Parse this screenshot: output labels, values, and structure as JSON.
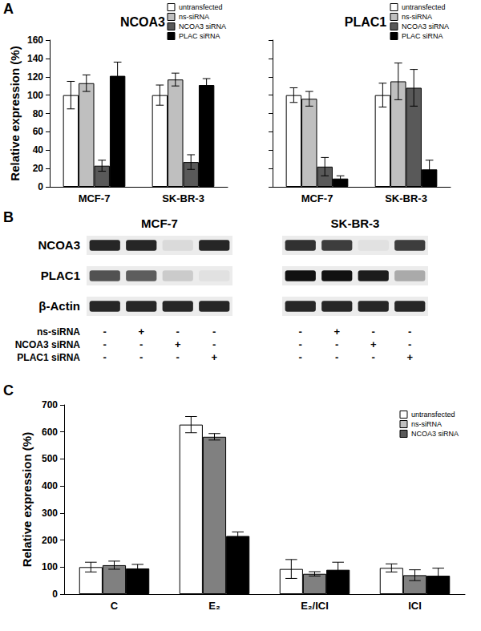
{
  "panel_labels": [
    "A",
    "B",
    "C"
  ],
  "chart_data": [
    {
      "type": "bar",
      "title": "NCOA3",
      "y_label": "Relative expression (%)",
      "categories": [
        "MCF-7",
        "SK-BR-3"
      ],
      "series": [
        {
          "name": "untransfected",
          "color": "#ffffff",
          "values": [
            100,
            100
          ],
          "errors": [
            15,
            11
          ]
        },
        {
          "name": "ns-siRNA",
          "color": "#bfbfbf",
          "values": [
            113,
            117
          ],
          "errors": [
            9,
            7
          ]
        },
        {
          "name": "NCOA3 siRNA",
          "color": "#595959",
          "values": [
            23,
            27
          ],
          "errors": [
            6,
            8
          ]
        },
        {
          "name": "PLAC siRNA",
          "color": "#000000",
          "values": [
            121,
            111
          ],
          "errors": [
            15,
            7
          ]
        }
      ],
      "ylim": [
        0,
        160
      ],
      "yticks": [
        0,
        20,
        40,
        60,
        80,
        100,
        120,
        140,
        160
      ],
      "grid": false,
      "legend": "top-right"
    },
    {
      "type": "bar",
      "title": "PLAC1",
      "categories": [
        "MCF-7",
        "SK-BR-3"
      ],
      "series": [
        {
          "name": "untransfected",
          "color": "#ffffff",
          "values": [
            100,
            100
          ],
          "errors": [
            8,
            13
          ]
        },
        {
          "name": "ns-siRNA",
          "color": "#bfbfbf",
          "values": [
            96,
            115
          ],
          "errors": [
            8,
            20
          ]
        },
        {
          "name": "NCOA3 siRNA",
          "color": "#595959",
          "values": [
            22,
            108
          ],
          "errors": [
            10,
            20
          ]
        },
        {
          "name": "PLAC siRNA",
          "color": "#000000",
          "values": [
            9,
            19
          ],
          "errors": [
            3,
            10
          ]
        }
      ],
      "ylim": [
        0,
        160
      ],
      "yticks": [
        0,
        20,
        40,
        60,
        80,
        100,
        120,
        140,
        160
      ],
      "grid": false,
      "legend": "top-right",
      "tick_labels": "x"
    },
    {
      "type": "bar",
      "y_label": "Relative expression (%)",
      "categories": [
        "C",
        "E₂",
        "E₂/ICI",
        "ICI"
      ],
      "series": [
        {
          "name": "untransfected",
          "color": "#ffffff",
          "values": [
            100,
            627,
            93,
            97
          ],
          "errors": [
            18,
            30,
            35,
            15
          ]
        },
        {
          "name": "ns-siRNA",
          "color": "#808080",
          "values": [
            107,
            582,
            75,
            70
          ],
          "errors": [
            15,
            12,
            8,
            20
          ]
        },
        {
          "name": "NCOA3 siRNA",
          "color": "#000000",
          "values": [
            95,
            215,
            90,
            68
          ],
          "errors": [
            15,
            15,
            28,
            28
          ]
        }
      ],
      "ylim": [
        0,
        700
      ],
      "yticks": [
        0,
        100,
        200,
        300,
        400,
        500,
        600,
        700
      ],
      "grid": false,
      "legend": "top-right"
    }
  ],
  "blot": {
    "rows": [
      "NCOA3",
      "PLAC1",
      "β-Actin"
    ],
    "cell_lines": [
      {
        "name": "MCF-7",
        "intensity": [
          [
            0.9,
            0.9,
            0.08,
            0.9
          ],
          [
            0.7,
            0.65,
            0.15,
            0.05
          ],
          [
            0.9,
            0.9,
            0.9,
            0.9
          ]
        ]
      },
      {
        "name": "SK-BR-3",
        "intensity": [
          [
            0.85,
            0.8,
            0.05,
            0.8
          ],
          [
            1,
            1,
            0.95,
            0.3
          ],
          [
            0.9,
            0.9,
            0.9,
            0.9
          ]
        ]
      }
    ],
    "treatments": [
      {
        "label": "ns-siRNA",
        "signs": [
          "-",
          "+",
          "-",
          "-"
        ]
      },
      {
        "label": "NCOA3 siRNA",
        "signs": [
          "-",
          "-",
          "+",
          "-"
        ]
      },
      {
        "label": "PLAC1 siRNA",
        "signs": [
          "-",
          "-",
          "-",
          "+"
        ]
      }
    ]
  }
}
